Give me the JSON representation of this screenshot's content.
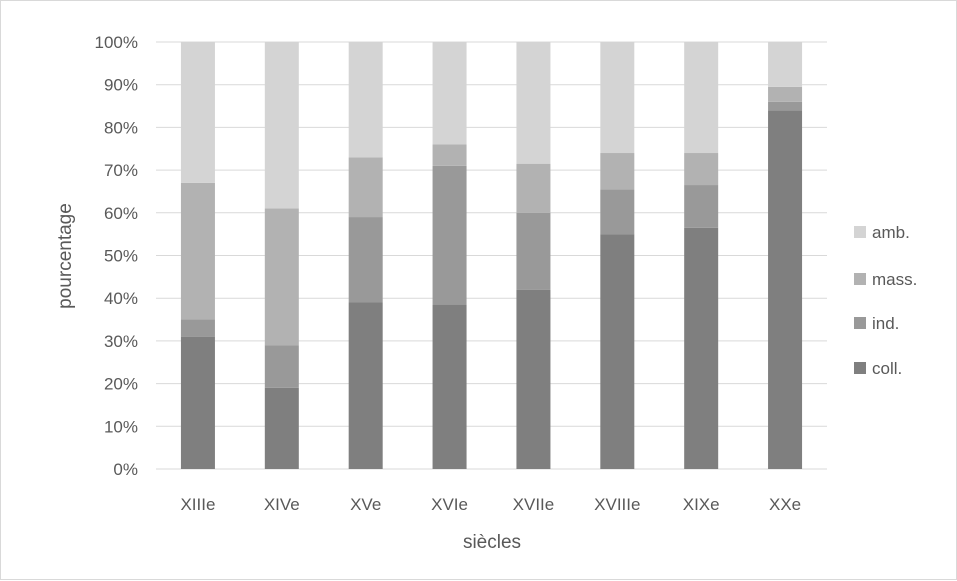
{
  "chart_data": {
    "type": "bar",
    "stacked": true,
    "percent": true,
    "title": "",
    "xlabel": "siècles",
    "ylabel": "pourcentage",
    "categories": [
      "XIIIe",
      "XIVe",
      "XVe",
      "XVIe",
      "XVIIe",
      "XVIIIe",
      "XIXe",
      "XXe"
    ],
    "ylim": [
      0,
      100
    ],
    "y_ticks": [
      "0%",
      "10%",
      "20%",
      "30%",
      "40%",
      "50%",
      "60%",
      "70%",
      "80%",
      "90%",
      "100%"
    ],
    "grid": true,
    "legend_position": "right",
    "series": [
      {
        "name": "coll.",
        "color": "#7f7f7f",
        "values": [
          31,
          19,
          39,
          38.5,
          42,
          55,
          56.5,
          84
        ]
      },
      {
        "name": "ind.",
        "color": "#999999",
        "values": [
          4,
          10,
          20,
          32.5,
          18,
          10.5,
          10,
          2
        ]
      },
      {
        "name": "mass.",
        "color": "#b2b2b2",
        "values": [
          32,
          32,
          14,
          5,
          11.5,
          8.5,
          7.5,
          3.5
        ]
      },
      {
        "name": "amb.",
        "color": "#d4d4d4",
        "values": [
          33,
          39,
          27,
          24,
          28.5,
          26,
          26,
          10.5
        ]
      }
    ]
  }
}
